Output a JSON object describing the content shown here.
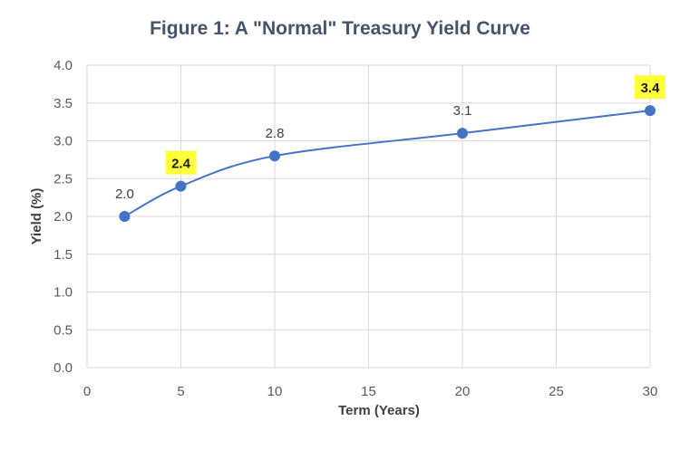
{
  "chart_data": {
    "type": "line",
    "title": "Figure 1: A \"Normal\" Treasury Yield Curve",
    "xlabel": "Term (Years)",
    "ylabel": "Yield (%)",
    "xlim": [
      0,
      30
    ],
    "ylim": [
      0,
      4
    ],
    "xticks": [
      0,
      5,
      10,
      15,
      20,
      25,
      30
    ],
    "yticks": [
      "0.0",
      "0.5",
      "1.0",
      "1.5",
      "2.0",
      "2.5",
      "3.0",
      "3.5",
      "4.0"
    ],
    "grid": true,
    "smooth": true,
    "series": [
      {
        "points": [
          {
            "x": 2,
            "y": 2.0,
            "label": "2.0",
            "highlight": false
          },
          {
            "x": 5,
            "y": 2.4,
            "label": "2.4",
            "highlight": true
          },
          {
            "x": 10,
            "y": 2.8,
            "label": "2.8",
            "highlight": false
          },
          {
            "x": 20,
            "y": 3.1,
            "label": "3.1",
            "highlight": false
          },
          {
            "x": 30,
            "y": 3.4,
            "label": "3.4",
            "highlight": true
          }
        ],
        "color": "#4472c4"
      }
    ],
    "highlight_color": "#ffff3a"
  }
}
